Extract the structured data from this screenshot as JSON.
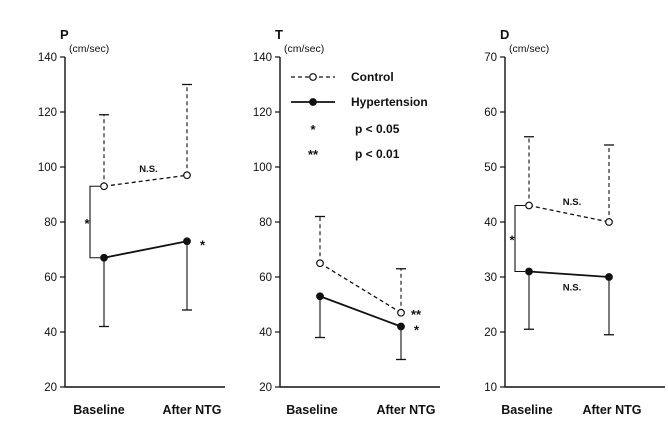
{
  "chart_data": [
    {
      "type": "line",
      "panel_letter": "P",
      "unit": "(cm/sec)",
      "categories": [
        "Baseline",
        "After NTG"
      ],
      "ylim": [
        20,
        140
      ],
      "yticks": [
        20,
        40,
        60,
        80,
        100,
        120,
        140
      ],
      "series": [
        {
          "id": "control",
          "style": "dashed",
          "marker": "open",
          "values": [
            93,
            97
          ],
          "error_upper": [
            119,
            130
          ],
          "error_lower": [
            null,
            null
          ]
        },
        {
          "id": "hypertension",
          "style": "solid",
          "marker": "filled",
          "values": [
            67,
            73
          ],
          "error_upper": [
            null,
            null
          ],
          "error_lower": [
            42,
            48
          ]
        }
      ],
      "annotations": [
        {
          "text": "N.S.",
          "between": "control"
        },
        {
          "text": "*",
          "type": "bracket-baseline"
        },
        {
          "text": "*",
          "type": "after-hypertension"
        }
      ]
    },
    {
      "type": "line",
      "panel_letter": "T",
      "unit": "(cm/sec)",
      "categories": [
        "Baseline",
        "After NTG"
      ],
      "ylim": [
        20,
        140
      ],
      "yticks": [
        20,
        40,
        60,
        80,
        100,
        120,
        140
      ],
      "series": [
        {
          "id": "control",
          "style": "dashed",
          "marker": "open",
          "values": [
            65,
            47
          ],
          "error_upper": [
            82,
            63
          ],
          "error_lower": [
            null,
            null
          ]
        },
        {
          "id": "hypertension",
          "style": "solid",
          "marker": "filled",
          "values": [
            53,
            42
          ],
          "error_upper": [
            null,
            null
          ],
          "error_lower": [
            38,
            30
          ]
        }
      ],
      "annotations": [
        {
          "text": "**",
          "type": "after-control"
        },
        {
          "text": "*",
          "type": "after-hypertension"
        }
      ],
      "legend": [
        {
          "symbol": "dashed-open",
          "label": "Control"
        },
        {
          "symbol": "solid-filled",
          "label": "Hypertension"
        },
        {
          "symbol": "*",
          "label": "p < 0.05"
        },
        {
          "symbol": "**",
          "label": "p < 0.01"
        }
      ]
    },
    {
      "type": "line",
      "panel_letter": "D",
      "unit": "(cm/sec)",
      "categories": [
        "Baseline",
        "After NTG"
      ],
      "ylim": [
        10,
        70
      ],
      "yticks": [
        10,
        20,
        30,
        40,
        50,
        60,
        70
      ],
      "series": [
        {
          "id": "control",
          "style": "dashed",
          "marker": "open",
          "values": [
            43,
            40
          ],
          "error_upper": [
            55.5,
            54
          ],
          "error_lower": [
            null,
            null
          ]
        },
        {
          "id": "hypertension",
          "style": "solid",
          "marker": "filled",
          "values": [
            31,
            30
          ],
          "error_upper": [
            null,
            null
          ],
          "error_lower": [
            20.5,
            19.5
          ]
        }
      ],
      "annotations": [
        {
          "text": "N.S.",
          "between": "control"
        },
        {
          "text": "N.S.",
          "between": "hypertension"
        },
        {
          "text": "*",
          "type": "bracket-baseline"
        }
      ]
    }
  ]
}
